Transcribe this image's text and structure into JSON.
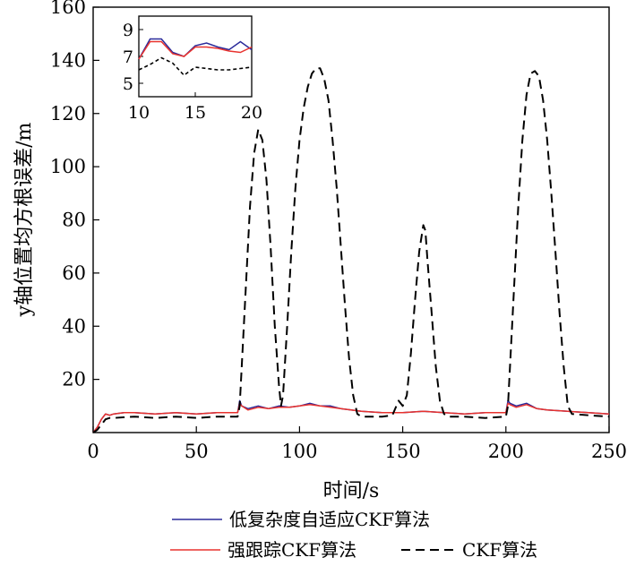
{
  "chart_data": {
    "type": "line",
    "xlabel": "时间/s",
    "ylabel": "y轴位置均方根误差/m",
    "xlim": [
      0,
      250
    ],
    "ylim": [
      0,
      160
    ],
    "xticks": [
      0,
      50,
      100,
      150,
      200,
      250
    ],
    "yticks": [
      20,
      40,
      60,
      80,
      100,
      120,
      140,
      160
    ],
    "grid": false,
    "legend_position": "bottom",
    "series": [
      {
        "name": "低复杂度自适应CKF算法",
        "color": "#2a2a9a",
        "style": "solid",
        "x": [
          0,
          2,
          4,
          6,
          8,
          10,
          15,
          20,
          30,
          40,
          50,
          60,
          70,
          71,
          72,
          75,
          80,
          85,
          90,
          95,
          100,
          105,
          110,
          115,
          120,
          125,
          130,
          140,
          150,
          160,
          170,
          180,
          190,
          200,
          201,
          202,
          205,
          210,
          215,
          220,
          230,
          240,
          250
        ],
        "y": [
          0,
          2,
          5,
          7,
          6.5,
          7,
          7.5,
          7.5,
          7,
          7.5,
          7,
          7.5,
          7.5,
          12,
          10,
          9,
          10,
          9,
          10,
          9.5,
          10,
          11,
          10,
          10,
          9,
          8.5,
          8,
          7.5,
          7.5,
          8,
          7.5,
          7,
          7.5,
          7.5,
          12,
          11,
          10,
          11,
          9,
          8.5,
          8,
          7.5,
          7
        ]
      },
      {
        "name": "强跟踪CKF算法",
        "color": "#e8322e",
        "style": "solid",
        "x": [
          0,
          2,
          4,
          6,
          8,
          10,
          15,
          20,
          30,
          40,
          50,
          60,
          70,
          71,
          72,
          75,
          80,
          85,
          90,
          95,
          100,
          105,
          110,
          115,
          120,
          125,
          130,
          140,
          150,
          160,
          170,
          180,
          190,
          200,
          201,
          202,
          205,
          210,
          215,
          220,
          230,
          240,
          250
        ],
        "y": [
          0,
          2,
          5,
          7,
          6.5,
          7,
          7.5,
          7.5,
          7,
          7.5,
          7,
          7.5,
          7.5,
          11,
          10,
          8.5,
          9.5,
          9,
          9.5,
          9.5,
          10,
          10.5,
          10,
          9.5,
          9,
          8.5,
          8,
          7.5,
          7.5,
          8,
          7.5,
          7,
          7.5,
          7.5,
          11,
          10.5,
          9.5,
          10.5,
          9,
          8.5,
          8,
          7.5,
          7
        ]
      },
      {
        "name": "CKF算法",
        "color": "#000000",
        "style": "dashed",
        "x": [
          0,
          2,
          4,
          6,
          8,
          10,
          20,
          30,
          40,
          50,
          60,
          70,
          71,
          72,
          74,
          76,
          78,
          80,
          82,
          84,
          86,
          88,
          90,
          91,
          92,
          94,
          96,
          98,
          100,
          102,
          104,
          106,
          108,
          110,
          112,
          114,
          116,
          118,
          120,
          122,
          124,
          126,
          128,
          130,
          140,
          145,
          148,
          150,
          152,
          154,
          156,
          158,
          160,
          161,
          162,
          164,
          166,
          168,
          170,
          172,
          180,
          190,
          200,
          201,
          202,
          204,
          206,
          208,
          210,
          212,
          214,
          216,
          218,
          220,
          222,
          224,
          226,
          228,
          230,
          232,
          240,
          250
        ],
        "y": [
          0,
          1,
          3,
          5,
          5.5,
          5.5,
          6,
          5.5,
          6,
          5.5,
          6,
          6,
          10,
          25,
          55,
          85,
          105,
          114,
          110,
          95,
          70,
          40,
          18,
          10,
          14,
          40,
          68,
          92,
          110,
          122,
          130,
          135,
          137,
          137,
          133,
          125,
          110,
          92,
          70,
          48,
          28,
          14,
          7,
          6,
          6,
          6.5,
          12,
          10,
          14,
          30,
          50,
          68,
          78,
          76,
          65,
          45,
          25,
          12,
          7,
          6,
          6,
          5.5,
          6,
          10,
          25,
          55,
          85,
          110,
          127,
          135,
          136,
          134,
          125,
          110,
          90,
          68,
          45,
          25,
          10,
          7,
          6.5,
          6
        ]
      }
    ],
    "inset": {
      "xlim": [
        10,
        20
      ],
      "ylim": [
        4,
        10
      ],
      "xticks": [
        10,
        15,
        20
      ],
      "yticks": [
        5,
        7,
        9
      ],
      "series": [
        {
          "name": "低复杂度自适应CKF算法",
          "x": [
            10,
            11,
            12,
            13,
            14,
            15,
            16,
            17,
            18,
            19,
            20
          ],
          "y": [
            6.8,
            8.3,
            8.3,
            7.3,
            7.0,
            7.8,
            8.0,
            7.7,
            7.5,
            8.1,
            7.5
          ]
        },
        {
          "name": "强跟踪CKF算法",
          "x": [
            10,
            11,
            12,
            13,
            14,
            15,
            16,
            17,
            18,
            19,
            20
          ],
          "y": [
            6.8,
            8.1,
            8.1,
            7.2,
            7.0,
            7.7,
            7.7,
            7.6,
            7.4,
            7.3,
            7.7
          ]
        },
        {
          "name": "CKF算法",
          "x": [
            10,
            11,
            12,
            13,
            14,
            15,
            16,
            17,
            18,
            19,
            20
          ],
          "y": [
            6.0,
            6.4,
            6.9,
            6.5,
            5.6,
            6.2,
            6.1,
            6.0,
            6.0,
            6.1,
            6.2
          ]
        }
      ]
    }
  }
}
